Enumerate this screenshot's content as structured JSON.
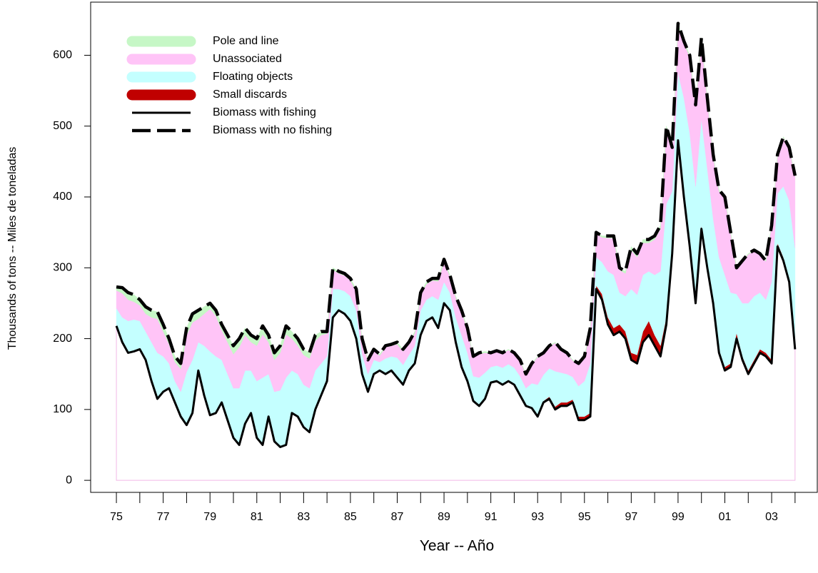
{
  "chart_data": {
    "type": "stacked-area",
    "x_label": "Year -- Año",
    "y_label": "Thousands of tons -- Miles de toneladas",
    "xlim": [
      1973.9,
      2004.95
    ],
    "ylim": [
      -17,
      675
    ],
    "yticks": [
      0,
      100,
      200,
      300,
      400,
      500,
      600
    ],
    "xticks": [
      {
        "value": 1975,
        "label": "75"
      },
      {
        "value": 1976,
        "label": null
      },
      {
        "value": 1977,
        "label": "77"
      },
      {
        "value": 1978,
        "label": null
      },
      {
        "value": 1979,
        "label": "79"
      },
      {
        "value": 1980,
        "label": null
      },
      {
        "value": 1981,
        "label": "81"
      },
      {
        "value": 1982,
        "label": null
      },
      {
        "value": 1983,
        "label": "83"
      },
      {
        "value": 1984,
        "label": null
      },
      {
        "value": 1985,
        "label": "85"
      },
      {
        "value": 1986,
        "label": null
      },
      {
        "value": 1987,
        "label": "87"
      },
      {
        "value": 1988,
        "label": null
      },
      {
        "value": 1989,
        "label": "89"
      },
      {
        "value": 1990,
        "label": null
      },
      {
        "value": 1991,
        "label": "91"
      },
      {
        "value": 1992,
        "label": null
      },
      {
        "value": 1993,
        "label": "93"
      },
      {
        "value": 1994,
        "label": null
      },
      {
        "value": 1995,
        "label": "95"
      },
      {
        "value": 1996,
        "label": null
      },
      {
        "value": 1997,
        "label": "97"
      },
      {
        "value": 1998,
        "label": null
      },
      {
        "value": 1999,
        "label": "99"
      },
      {
        "value": 2000,
        "label": null
      },
      {
        "value": 2001,
        "label": "01"
      },
      {
        "value": 2002,
        "label": null
      },
      {
        "value": 2003,
        "label": "03"
      },
      {
        "value": 2004,
        "label": null
      }
    ],
    "legend": "top-left",
    "x": [
      1975,
      1975.25,
      1975.5,
      1975.75,
      1976,
      1976.25,
      1976.5,
      1976.75,
      1977,
      1977.25,
      1977.5,
      1977.75,
      1978,
      1978.25,
      1978.5,
      1978.75,
      1979,
      1979.25,
      1979.5,
      1979.75,
      1980,
      1980.25,
      1980.5,
      1980.75,
      1981,
      1981.25,
      1981.5,
      1981.75,
      1982,
      1982.25,
      1982.5,
      1982.75,
      1983,
      1983.25,
      1983.5,
      1983.75,
      1984,
      1984.25,
      1984.5,
      1984.75,
      1985,
      1985.25,
      1985.5,
      1985.75,
      1986,
      1986.25,
      1986.5,
      1986.75,
      1987,
      1987.25,
      1987.5,
      1987.75,
      1988,
      1988.25,
      1988.5,
      1988.75,
      1989,
      1989.25,
      1989.5,
      1989.75,
      1990,
      1990.25,
      1990.5,
      1990.75,
      1991,
      1991.25,
      1991.5,
      1991.75,
      1992,
      1992.25,
      1992.5,
      1992.75,
      1993,
      1993.25,
      1993.5,
      1993.75,
      1994,
      1994.25,
      1994.5,
      1994.75,
      1995,
      1995.25,
      1995.5,
      1995.75,
      1996,
      1996.25,
      1996.5,
      1996.75,
      1997,
      1997.25,
      1997.5,
      1997.75,
      1998,
      1998.25,
      1998.5,
      1998.75,
      1999,
      1999.25,
      1999.5,
      1999.75,
      2000,
      2000.25,
      2000.5,
      2000.75,
      2001,
      2001.25,
      2001.5,
      2001.75,
      2002,
      2002.25,
      2002.5,
      2002.75,
      2003,
      2003.25,
      2003.5,
      2003.75,
      2004
    ],
    "series": [
      {
        "name": "Pole and line",
        "kind": "area",
        "color": "#c6f7c6",
        "values": [
          5,
          8,
          10,
          10,
          8,
          10,
          10,
          10,
          10,
          8,
          8,
          8,
          10,
          12,
          12,
          10,
          8,
          8,
          8,
          10,
          12,
          12,
          10,
          10,
          10,
          12,
          10,
          10,
          10,
          12,
          10,
          10,
          8,
          8,
          8,
          5,
          3,
          3,
          3,
          3,
          3,
          3,
          2,
          2,
          2,
          2,
          2,
          2,
          3,
          3,
          2,
          2,
          3,
          3,
          3,
          4,
          3,
          2,
          2,
          2,
          2,
          2,
          2,
          2,
          1,
          1,
          1,
          1,
          1,
          1,
          1,
          1,
          1,
          1,
          1,
          1,
          1,
          1,
          1,
          2,
          2,
          2,
          2,
          2,
          3,
          3,
          3,
          3,
          5,
          5,
          5,
          5,
          5,
          5,
          3,
          2,
          3,
          3,
          2,
          2,
          2,
          2,
          2,
          2,
          1,
          1,
          1,
          1,
          1,
          1,
          1,
          1,
          1,
          1,
          1,
          1,
          1
        ]
      },
      {
        "name": "Unassociated",
        "kind": "area",
        "color": "#ffc4f7",
        "values": [
          25,
          34,
          30,
          25,
          22,
          25,
          35,
          48,
          35,
          27,
          27,
          32,
          52,
          53,
          33,
          45,
          60,
          57,
          42,
          45,
          48,
          58,
          50,
          40,
          50,
          61,
          45,
          45,
          53,
          61,
          45,
          40,
          42,
          42,
          42,
          40,
          32,
          27,
          22,
          22,
          22,
          27,
          20,
          18,
          13,
          9,
          16,
          15,
          19,
          19,
          16,
          18,
          22,
          22,
          22,
          26,
          29,
          23,
          28,
          33,
          33,
          26,
          33,
          28,
          19,
          20,
          20,
          20,
          20,
          22,
          19,
          27,
          39,
          30,
          31,
          40,
          32,
          29,
          23,
          30,
          33,
          48,
          33,
          35,
          47,
          52,
          32,
          32,
          55,
          53,
          45,
          40,
          50,
          60,
          107,
          60,
          67,
          77,
          108,
          113,
          113,
          98,
          88,
          93,
          109,
          84,
          36,
          59,
          69,
          64,
          54,
          54,
          79,
          54,
          69,
          74,
          101
        ]
      },
      {
        "name": "Floating objects",
        "kind": "area",
        "color": "#c4ffff",
        "values": [
          25,
          35,
          45,
          45,
          40,
          40,
          55,
          65,
          50,
          35,
          30,
          35,
          75,
          75,
          40,
          70,
          90,
          80,
          60,
          65,
          70,
          80,
          75,
          60,
          80,
          95,
          60,
          70,
          80,
          95,
          60,
          60,
          60,
          62,
          55,
          45,
          35,
          40,
          30,
          32,
          35,
          40,
          28,
          25,
          20,
          12,
          22,
          20,
          28,
          28,
          22,
          25,
          35,
          30,
          30,
          40,
          30,
          25,
          35,
          45,
          40,
          35,
          40,
          37,
          22,
          22,
          24,
          24,
          24,
          27,
          25,
          35,
          45,
          37,
          40,
          50,
          42,
          40,
          32,
          43,
          50,
          70,
          40,
          45,
          65,
          75,
          45,
          50,
          90,
          85,
          80,
          70,
          85,
          105,
          160,
          80,
          90,
          130,
          150,
          160,
          150,
          135,
          115,
          130,
          130,
          100,
          55,
          75,
          95,
          90,
          80,
          75,
          110,
          70,
          100,
          110,
          140
        ]
      },
      {
        "name": "Small discards",
        "kind": "area",
        "color": "#c00000",
        "values": [
          0,
          0,
          0,
          0,
          0,
          0,
          0,
          0,
          0,
          0,
          0,
          0,
          0,
          0,
          0,
          0,
          0,
          0,
          0,
          0,
          0,
          0,
          0,
          0,
          0,
          0,
          0,
          0,
          0,
          0,
          0,
          0,
          0,
          0,
          0,
          0,
          0,
          0,
          0,
          0,
          0,
          0,
          0,
          0,
          0,
          0,
          0,
          0,
          0,
          0,
          0,
          0,
          0,
          0,
          0,
          0,
          0,
          0,
          0,
          0,
          0,
          0,
          0,
          0,
          0,
          0,
          0,
          0,
          0,
          0,
          0,
          0,
          0,
          2,
          3,
          4,
          5,
          5,
          4,
          5,
          5,
          5,
          5,
          8,
          10,
          10,
          10,
          10,
          10,
          12,
          15,
          20,
          15,
          15,
          10,
          8,
          5,
          10,
          10,
          5,
          5,
          5,
          5,
          5,
          5,
          5,
          8,
          5,
          5,
          5,
          5,
          5,
          5,
          5,
          5,
          5,
          3
        ]
      },
      {
        "name": "Biomass with fishing",
        "kind": "line",
        "dashed": false,
        "color": "#000000",
        "values": [
          218,
          195,
          180,
          182,
          185,
          170,
          140,
          115,
          125,
          130,
          110,
          90,
          78,
          95,
          155,
          120,
          92,
          95,
          110,
          85,
          60,
          50,
          80,
          95,
          60,
          50,
          90,
          55,
          47,
          50,
          95,
          90,
          75,
          68,
          100,
          120,
          140,
          230,
          240,
          235,
          225,
          200,
          150,
          125,
          150,
          155,
          150,
          155,
          145,
          135,
          155,
          165,
          205,
          225,
          230,
          215,
          250,
          240,
          195,
          160,
          140,
          112,
          105,
          115,
          138,
          140,
          135,
          140,
          135,
          120,
          105,
          102,
          90,
          110,
          115,
          100,
          105,
          105,
          110,
          85,
          85,
          90,
          270,
          255,
          220,
          205,
          210,
          200,
          170,
          165,
          195,
          205,
          190,
          175,
          220,
          320,
          480,
          400,
          330,
          250,
          355,
          300,
          250,
          180,
          155,
          160,
          200,
          170,
          150,
          165,
          180,
          175,
          165,
          330,
          310,
          280,
          185
        ]
      },
      {
        "name": "Biomass with no fishing",
        "kind": "line",
        "dashed": true,
        "color": "#000000",
        "values": [
          273,
          272,
          265,
          262,
          255,
          245,
          240,
          238,
          220,
          200,
          175,
          165,
          215,
          235,
          240,
          245,
          250,
          240,
          220,
          205,
          190,
          200,
          215,
          205,
          200,
          218,
          205,
          180,
          190,
          218,
          210,
          200,
          185,
          180,
          205,
          210,
          210,
          300,
          295,
          292,
          285,
          270,
          200,
          170,
          185,
          178,
          190,
          192,
          195,
          185,
          195,
          210,
          265,
          280,
          285,
          285,
          312,
          290,
          260,
          240,
          215,
          175,
          180,
          182,
          180,
          183,
          180,
          185,
          180,
          170,
          150,
          165,
          175,
          180,
          190,
          195,
          185,
          180,
          170,
          165,
          175,
          215,
          350,
          345,
          345,
          345,
          300,
          295,
          330,
          320,
          340,
          340,
          345,
          360,
          500,
          470,
          645,
          620,
          600,
          530,
          625,
          540,
          460,
          410,
          400,
          350,
          300,
          310,
          320,
          325,
          320,
          310,
          360,
          460,
          485,
          470,
          430
        ]
      }
    ]
  }
}
